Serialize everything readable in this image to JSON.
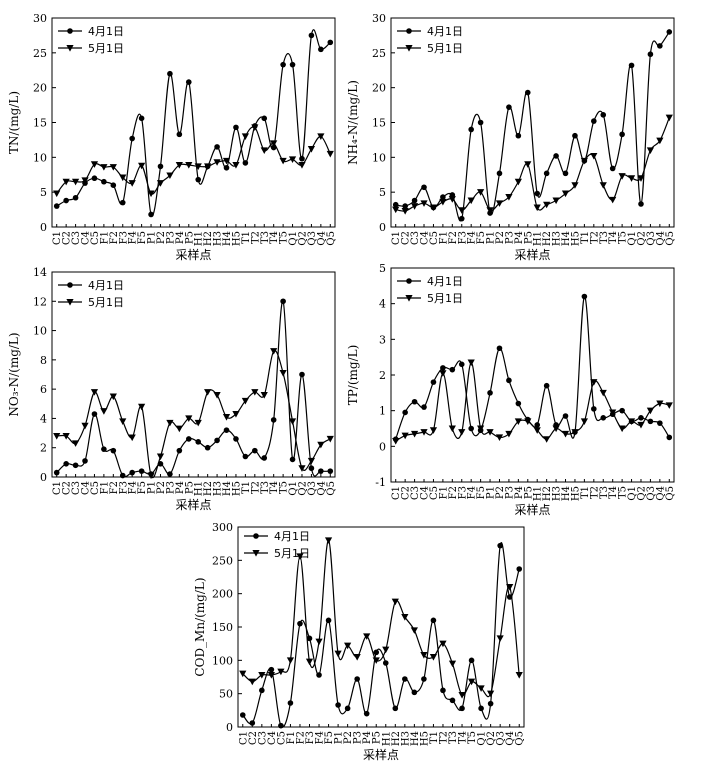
{
  "figure": {
    "common_xlabel": "采样点",
    "legend": [
      "4月1日",
      "5月1日"
    ]
  },
  "chart_data": [
    {
      "id": "tn",
      "type": "line",
      "ylabel": "TN/(mg/L)",
      "ylim": [
        0,
        30
      ],
      "yticks": [
        0,
        5,
        10,
        15,
        20,
        25,
        30
      ],
      "categories": [
        "C1",
        "C2",
        "C3",
        "C4",
        "C5",
        "F1",
        "F2",
        "F3",
        "F4",
        "F5",
        "P1",
        "P2",
        "P3",
        "P4",
        "P5",
        "H1",
        "H2",
        "H3",
        "H4",
        "H5",
        "T1",
        "T2",
        "T3",
        "T4",
        "T5",
        "Q1",
        "Q2",
        "Q3",
        "Q4",
        "Q5"
      ],
      "series": [
        {
          "name": "4月1日",
          "marker": "circle",
          "values": [
            3,
            3.8,
            4.2,
            6.3,
            7,
            6.5,
            6,
            3.5,
            12.7,
            15.6,
            1.8,
            8.7,
            22,
            13.3,
            20.8,
            6.8,
            8.7,
            11.5,
            8.5,
            14.3,
            9.2,
            14.5,
            15.6,
            11.4,
            23.3,
            23.3,
            9.8,
            27.5,
            25.5,
            26.5
          ]
        },
        {
          "name": "5月1日",
          "marker": "triangle-down",
          "values": [
            4.8,
            6.5,
            6.5,
            6.7,
            9,
            8.6,
            8.6,
            7.1,
            6.3,
            8.8,
            4.8,
            6.3,
            7.4,
            8.9,
            8.9,
            8.7,
            8.7,
            9.3,
            9.5,
            8.9,
            13,
            14.3,
            11,
            12,
            9.5,
            9.7,
            8.9,
            11.2,
            13,
            10.5
          ]
        }
      ]
    },
    {
      "id": "nh4",
      "type": "line",
      "ylabel": "NH₄-N/(mg/L)",
      "ylim": [
        0,
        30
      ],
      "yticks": [
        0,
        5,
        10,
        15,
        20,
        25,
        30
      ],
      "categories": [
        "C1",
        "C2",
        "C3",
        "C4",
        "C5",
        "F1",
        "F2",
        "F3",
        "F4",
        "F5",
        "P1",
        "P2",
        "P3",
        "P4",
        "P5",
        "H1",
        "H2",
        "H3",
        "H4",
        "H5",
        "T1",
        "T2",
        "T3",
        "T4",
        "T5",
        "Q1",
        "Q2",
        "Q3",
        "Q4",
        "Q5"
      ],
      "series": [
        {
          "name": "4月1日",
          "marker": "circle",
          "values": [
            3.2,
            3,
            3.8,
            5.7,
            2.8,
            4.3,
            4.6,
            1.2,
            14,
            15,
            2,
            7.7,
            17.2,
            13.1,
            19.3,
            4.8,
            7.7,
            10.2,
            7.7,
            13.1,
            9.5,
            15.2,
            16.1,
            8.4,
            13.3,
            23.2,
            3.3,
            24.8,
            26,
            28
          ]
        },
        {
          "name": "5月1日",
          "marker": "triangle-down",
          "values": [
            2.5,
            2.3,
            3,
            3.4,
            2.8,
            3.6,
            4,
            2.4,
            3.8,
            5,
            2.4,
            3.4,
            4.3,
            6.5,
            9,
            2.8,
            3.2,
            3.8,
            4.8,
            6,
            9.5,
            10.2,
            6,
            3.9,
            7.3,
            7,
            7,
            11,
            12.4,
            15.7
          ]
        }
      ]
    },
    {
      "id": "no3",
      "type": "line",
      "ylabel": "NO₃-N/(mg/L)",
      "ylim": [
        0,
        14
      ],
      "yticks": [
        0,
        2,
        4,
        6,
        8,
        10,
        12,
        14
      ],
      "categories": [
        "C1",
        "C2",
        "C3",
        "C4",
        "C5",
        "F1",
        "F2",
        "F3",
        "F4",
        "F5",
        "P1",
        "P2",
        "P3",
        "P4",
        "P5",
        "H1",
        "H2",
        "H3",
        "H4",
        "H5",
        "T1",
        "T2",
        "T3",
        "T4",
        "T5",
        "Q1",
        "Q2",
        "Q3",
        "Q4",
        "Q5"
      ],
      "series": [
        {
          "name": "4月1日",
          "marker": "circle",
          "values": [
            0.3,
            0.9,
            0.8,
            1.1,
            4.3,
            1.9,
            1.8,
            0.1,
            0.3,
            0.4,
            0.2,
            0.9,
            0.2,
            1.8,
            2.6,
            2.4,
            2,
            2.5,
            3.2,
            2.6,
            1.4,
            1.8,
            1.3,
            3.9,
            12,
            1.2,
            7,
            0.6,
            0.4,
            0.4
          ]
        },
        {
          "name": "5月1日",
          "marker": "triangle-down",
          "values": [
            2.8,
            2.8,
            2.3,
            3.5,
            5.8,
            4.5,
            5.5,
            3.8,
            2.7,
            4.8,
            0.1,
            1.4,
            3.7,
            3.3,
            4,
            3.7,
            5.8,
            5.6,
            4.1,
            4.3,
            5.2,
            5.8,
            5.6,
            8.6,
            7.1,
            3.8,
            0.6,
            1.1,
            2.2,
            2.6
          ]
        }
      ]
    },
    {
      "id": "tp",
      "type": "line",
      "ylabel": "TP/(mg/L)",
      "ylim": [
        -1,
        5
      ],
      "yticks": [
        -1,
        0,
        1,
        2,
        3,
        4,
        5
      ],
      "categories": [
        "C1",
        "C2",
        "C3",
        "C4",
        "C5",
        "F1",
        "F2",
        "F3",
        "F4",
        "F5",
        "P1",
        "P2",
        "P3",
        "P4",
        "P5",
        "H1",
        "H2",
        "H3",
        "H4",
        "H5",
        "T1",
        "T2",
        "T3",
        "T4",
        "T5",
        "Q1",
        "Q2",
        "Q3",
        "Q4",
        "Q5"
      ],
      "series": [
        {
          "name": "4月1日",
          "marker": "circle",
          "values": [
            0.2,
            0.95,
            1.25,
            1.1,
            1.8,
            2.2,
            2.15,
            2.3,
            0.5,
            0.45,
            1.5,
            2.75,
            1.85,
            1.2,
            0.75,
            0.6,
            1.7,
            0.6,
            0.85,
            0.4,
            4.2,
            1.05,
            0.8,
            0.9,
            1,
            0.7,
            0.8,
            0.7,
            0.65,
            0.25
          ]
        },
        {
          "name": "5月1日",
          "marker": "triangle-down",
          "values": [
            0.15,
            0.3,
            0.35,
            0.4,
            0.45,
            2.05,
            0.5,
            0.4,
            2.35,
            0.5,
            0.4,
            0.25,
            0.35,
            0.7,
            0.7,
            0.45,
            0.2,
            0.5,
            0.35,
            0.4,
            0.7,
            1.8,
            1.5,
            0.95,
            0.5,
            0.7,
            0.6,
            1,
            1.2,
            1.15
          ]
        }
      ]
    },
    {
      "id": "cod",
      "type": "line",
      "ylabel": "COD_Mn/(mg/L)",
      "ylim": [
        0,
        300
      ],
      "yticks": [
        0,
        50,
        100,
        150,
        200,
        250,
        300
      ],
      "categories": [
        "C1",
        "C2",
        "C3",
        "C4",
        "C5",
        "F1",
        "F2",
        "F3",
        "F4",
        "F5",
        "P1",
        "P2",
        "P3",
        "P4",
        "P5",
        "H1",
        "H2",
        "H3",
        "H4",
        "H5",
        "T1",
        "T2",
        "T3",
        "T4",
        "T5",
        "Q1",
        "Q2",
        "Q3",
        "Q4",
        "Q5"
      ],
      "series": [
        {
          "name": "4月1日",
          "marker": "circle",
          "values": [
            18,
            6,
            55,
            86,
            2,
            36,
            155,
            133,
            78,
            160,
            33,
            28,
            72,
            20,
            112,
            96,
            28,
            72,
            52,
            72,
            160,
            55,
            40,
            28,
            100,
            28,
            35,
            272,
            195,
            237
          ]
        },
        {
          "name": "5月1日",
          "marker": "triangle-down",
          "values": [
            80,
            68,
            78,
            78,
            83,
            100,
            256,
            98,
            128,
            280,
            110,
            122,
            105,
            136,
            100,
            116,
            188,
            165,
            145,
            108,
            105,
            125,
            95,
            48,
            68,
            58,
            50,
            133,
            210,
            78
          ]
        }
      ]
    }
  ]
}
